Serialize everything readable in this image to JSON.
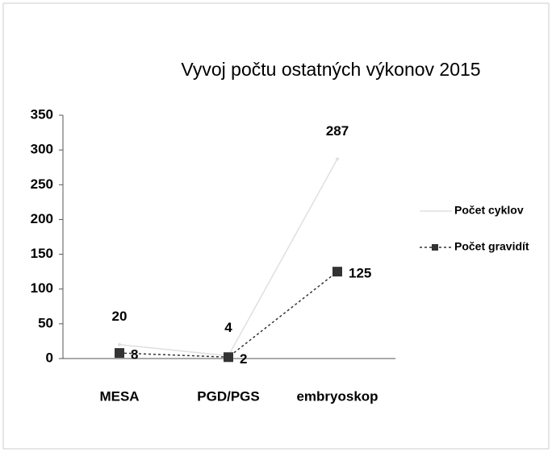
{
  "chart_data": {
    "type": "line",
    "title": "Vyvoj počtu ostatných výkonov 2015",
    "categories": [
      "MESA",
      "PGD/PGS",
      "embryoskop"
    ],
    "series": [
      {
        "name": "Počet cyklov",
        "color": "#e0e0e0",
        "values": [
          20,
          4,
          287
        ]
      },
      {
        "name": "Počet gravidít",
        "color": "#333333",
        "values": [
          8,
          2,
          125
        ]
      }
    ],
    "ylim": [
      0,
      350
    ],
    "yticks": [
      0,
      50,
      100,
      150,
      200,
      250,
      300,
      350
    ],
    "legend": "right",
    "grid": false
  }
}
